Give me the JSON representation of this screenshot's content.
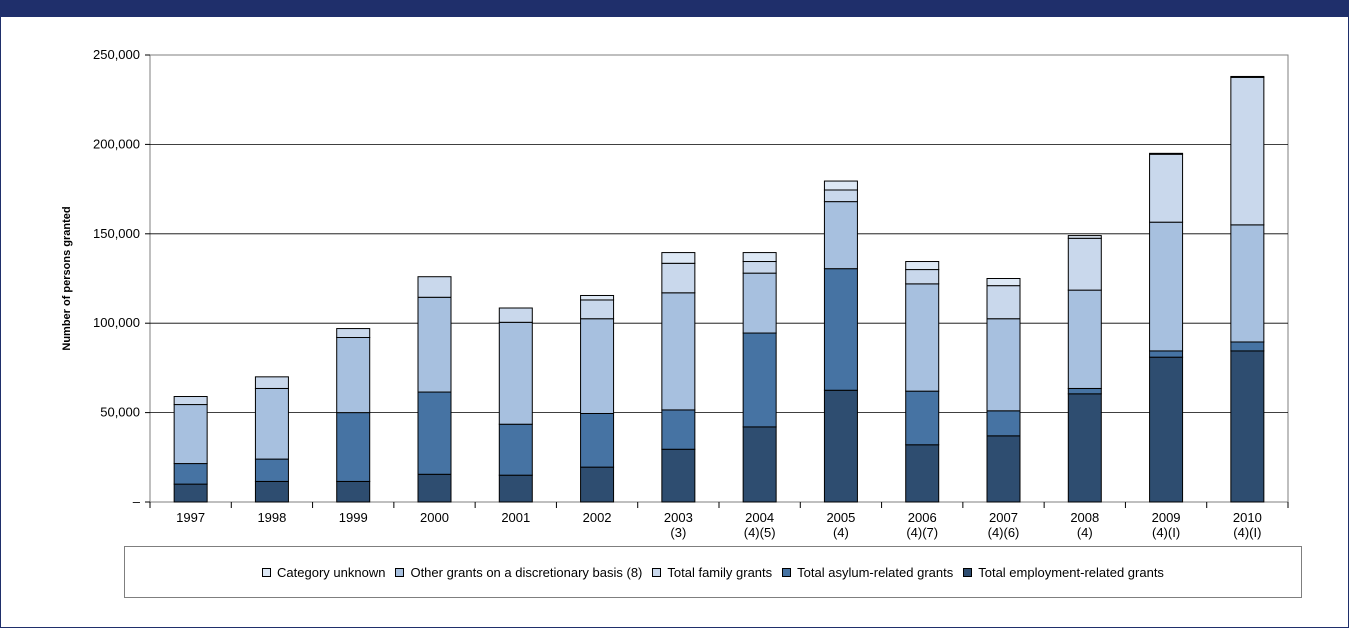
{
  "chart_data": {
    "type": "bar",
    "stacked": true,
    "title": "",
    "xlabel": "",
    "ylabel": "Number of persons granted",
    "ylim": [
      0,
      250000
    ],
    "yticks": [
      0,
      50000,
      100000,
      150000,
      200000,
      250000
    ],
    "ytick_labels": [
      "–",
      "50,000",
      "100,000",
      "150,000",
      "200,000",
      "250,000"
    ],
    "categories": [
      {
        "line1": "1997",
        "line2": ""
      },
      {
        "line1": "1998",
        "line2": ""
      },
      {
        "line1": "1999",
        "line2": ""
      },
      {
        "line1": "2000",
        "line2": ""
      },
      {
        "line1": "2001",
        "line2": ""
      },
      {
        "line1": "2002",
        "line2": ""
      },
      {
        "line1": "2003",
        "line2": "(3)"
      },
      {
        "line1": "2004",
        "line2": "(4)(5)"
      },
      {
        "line1": "2005",
        "line2": "(4)"
      },
      {
        "line1": "2006",
        "line2": "(4)(7)"
      },
      {
        "line1": "2007",
        "line2": "(4)(6)"
      },
      {
        "line1": "2008",
        "line2": "(4)"
      },
      {
        "line1": "2009",
        "line2": "(4)(I)"
      },
      {
        "line1": "2010",
        "line2": "(4)(I)"
      }
    ],
    "series": [
      {
        "name": "Total employment-related grants",
        "color": "#2e4d70",
        "values": [
          10000,
          11500,
          11500,
          15500,
          15000,
          19500,
          29500,
          42000,
          62500,
          32000,
          37000,
          60500,
          81000,
          84500
        ]
      },
      {
        "name": "Total asylum-related grants",
        "color": "#4673a3",
        "values": [
          11500,
          12500,
          38500,
          46000,
          28500,
          30000,
          22000,
          52500,
          68000,
          30000,
          14000,
          3000,
          3500,
          5000
        ]
      },
      {
        "name": "Other grants on a discretionary basis (8)",
        "color": "#a7c0df",
        "values": [
          33000,
          39500,
          42000,
          53000,
          57000,
          53000,
          65500,
          33500,
          37500,
          60000,
          51500,
          55000,
          72000,
          65500
        ]
      },
      {
        "name": "Total family grants",
        "color": "#c9d8ec",
        "values": [
          4500,
          6500,
          5000,
          11500,
          8000,
          10500,
          16500,
          6500,
          6500,
          8000,
          18500,
          29000,
          38000,
          82500
        ]
      },
      {
        "name": "Category unknown",
        "color": "#dde8f5",
        "values": [
          0,
          0,
          0,
          0,
          0,
          2500,
          6000,
          5000,
          5000,
          4500,
          4000,
          1500,
          500,
          500
        ]
      }
    ],
    "legend": {
      "placement": "bottom",
      "order": [
        "Category unknown",
        "Other grants on a discretionary basis (8)",
        "Total family grants",
        "Total asylum-related grants",
        "Total employment-related grants"
      ]
    },
    "grid": true
  }
}
